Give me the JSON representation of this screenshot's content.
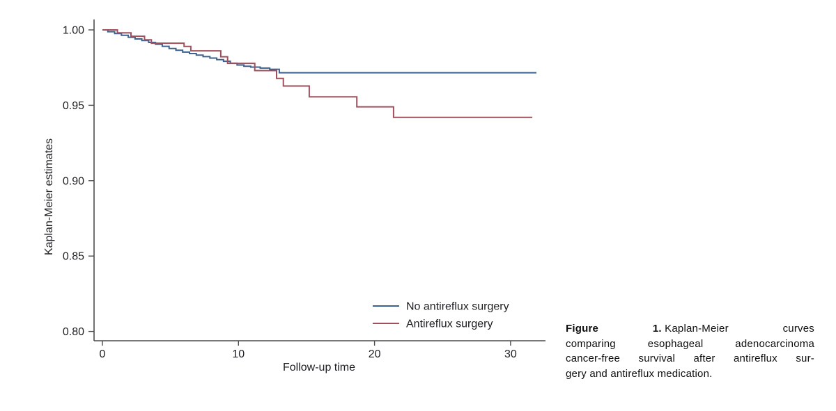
{
  "page": {
    "background": "#ffffff"
  },
  "caption": {
    "label": "Figure",
    "number": "1.",
    "line1_mid": "Kaplan-Meier",
    "line1_end": "curves",
    "line2": "comparing esophageal adenocarcinoma",
    "line3": "cancer-free survival after antireflux sur-",
    "line4": "gery and antireflux medication.",
    "full_text": "Figure 1. Kaplan-Meier curves comparing esophageal adenocarcinoma cancer-free survival after antireflux surgery and antireflux medication."
  },
  "chart_data": {
    "type": "line",
    "style": "kaplan-meier-step",
    "title": "",
    "xlabel": "Follow-up time",
    "ylabel": "Kaplan-Meier estimates",
    "xlim": [
      0,
      32.6
    ],
    "ylim": [
      0.795,
      1.005
    ],
    "x_ticks": [
      0,
      10,
      20,
      30
    ],
    "x_tick_labels": [
      "0",
      "10",
      "20",
      "30"
    ],
    "y_ticks": [
      1.0,
      0.95,
      0.9,
      0.85,
      0.8
    ],
    "y_tick_labels": [
      "1.00",
      "0.95",
      "0.90",
      "0.85",
      "0.80"
    ],
    "grid": false,
    "legend_position": "inside bottom-right",
    "colors": {
      "axis": "#4c4c4e",
      "text": "#1d1d23"
    },
    "series": [
      {
        "name": "No antireflux surgery",
        "color": "#3d618e",
        "points": [
          [
            0,
            1.0
          ],
          [
            0.4,
            0.9988
          ],
          [
            0.9,
            0.9976
          ],
          [
            1.4,
            0.9964
          ],
          [
            1.9,
            0.9951
          ],
          [
            2.4,
            0.994
          ],
          [
            2.9,
            0.993
          ],
          [
            3.4,
            0.9917
          ],
          [
            3.9,
            0.9905
          ],
          [
            4.4,
            0.9891
          ],
          [
            4.9,
            0.9877
          ],
          [
            5.4,
            0.9865
          ],
          [
            5.9,
            0.9853
          ],
          [
            6.4,
            0.9843
          ],
          [
            6.9,
            0.9833
          ],
          [
            7.4,
            0.9823
          ],
          [
            7.9,
            0.9813
          ],
          [
            8.4,
            0.9803
          ],
          [
            8.9,
            0.9792
          ],
          [
            9.4,
            0.9779
          ],
          [
            9.9,
            0.9767
          ],
          [
            10.4,
            0.9759
          ],
          [
            10.9,
            0.9753
          ],
          [
            11.6,
            0.9747
          ],
          [
            12.3,
            0.9739
          ],
          [
            13.0,
            0.9716
          ],
          [
            31.9,
            0.9716
          ]
        ]
      },
      {
        "name": "Antireflux surgery",
        "color": "#a0505c",
        "points": [
          [
            0,
            1.0
          ],
          [
            1.1,
            0.998
          ],
          [
            2.1,
            0.9958
          ],
          [
            3.1,
            0.9934
          ],
          [
            3.6,
            0.9912
          ],
          [
            6.0,
            0.989
          ],
          [
            6.5,
            0.9861
          ],
          [
            8.7,
            0.9822
          ],
          [
            9.2,
            0.9778
          ],
          [
            11.2,
            0.973
          ],
          [
            12.8,
            0.9678
          ],
          [
            13.3,
            0.9628
          ],
          [
            15.2,
            0.9556
          ],
          [
            18.7,
            0.949
          ],
          [
            21.4,
            0.942
          ],
          [
            31.6,
            0.942
          ]
        ]
      }
    ]
  }
}
